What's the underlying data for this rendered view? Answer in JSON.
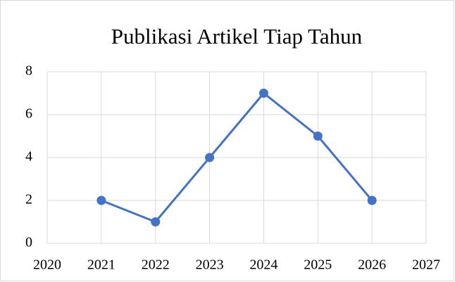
{
  "chart_data": {
    "type": "line",
    "title": "Publikasi Artikel Tiap Tahun",
    "x": [
      2021,
      2022,
      2023,
      2024,
      2025,
      2026
    ],
    "values": [
      2,
      1,
      4,
      7,
      5,
      2
    ],
    "color": "#4472c4",
    "xlim": [
      2020,
      2027
    ],
    "xticks": [
      2020,
      2021,
      2022,
      2023,
      2024,
      2025,
      2026,
      2027
    ],
    "ylim": [
      0,
      8
    ],
    "yticks": [
      0,
      2,
      4,
      6,
      8
    ],
    "grid": true,
    "markers": true
  }
}
